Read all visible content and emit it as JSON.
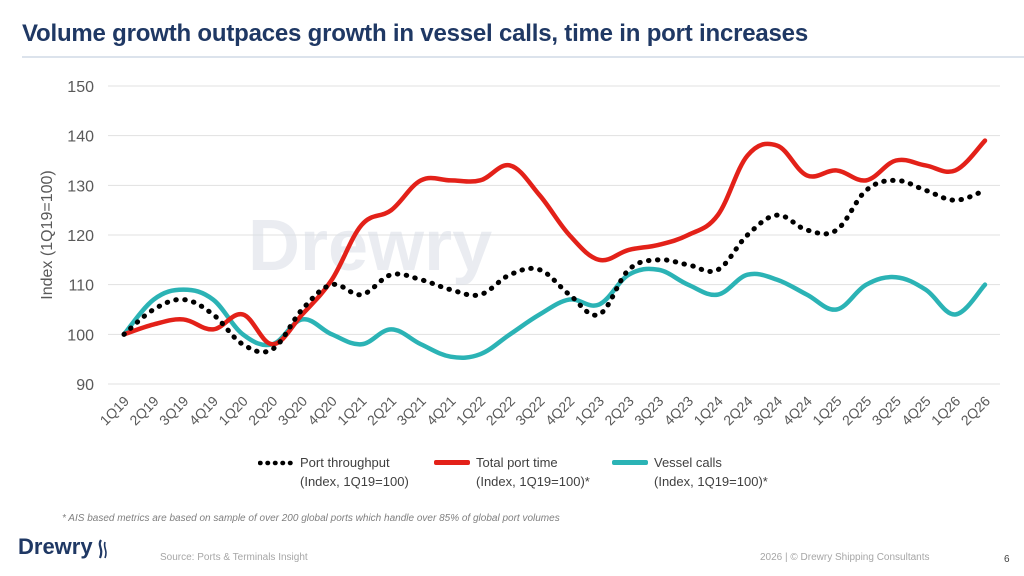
{
  "slide": {
    "title": "Volume growth outpaces growth in vessel calls, time in port increases",
    "watermark": "Drewry",
    "footnote": "* AIS based metrics are based on sample of over 200 global ports which handle over 85% of global port volumes",
    "logo_text": "Drewry",
    "source": "Source: Ports & Terminals Insight",
    "copyright": "2026  |  © Drewry Shipping Consultants",
    "page_number": "6"
  },
  "legend": {
    "items": [
      {
        "line1": "Port throughput",
        "line2": "(Index, 1Q19=100)",
        "color": "#000000",
        "style": "dotted"
      },
      {
        "line1": "Total port time",
        "line2": "(Index, 1Q19=100)*",
        "color": "#e32119",
        "style": "solid"
      },
      {
        "line1": "Vessel calls",
        "line2": "(Index, 1Q19=100)*",
        "color": "#2bb3b5",
        "style": "solid"
      }
    ]
  },
  "chart_data": {
    "type": "line",
    "title": "Volume growth outpaces growth in vessel calls, time in port increases",
    "xlabel": "",
    "ylabel": "Index (1Q19=100)",
    "ylim": [
      90,
      150
    ],
    "yticks": [
      90,
      100,
      110,
      120,
      130,
      140,
      150
    ],
    "grid": true,
    "legend_position": "bottom",
    "categories": [
      "1Q19",
      "2Q19",
      "3Q19",
      "4Q19",
      "1Q20",
      "2Q20",
      "3Q20",
      "4Q20",
      "1Q21",
      "2Q21",
      "3Q21",
      "4Q21",
      "1Q22",
      "2Q22",
      "3Q22",
      "4Q22",
      "1Q23",
      "2Q23",
      "3Q23",
      "4Q23",
      "1Q24",
      "2Q24",
      "3Q24",
      "4Q24",
      "1Q25",
      "2Q25",
      "3Q25",
      "4Q25",
      "1Q26",
      "2Q26"
    ],
    "series": [
      {
        "name": "Port throughput",
        "color": "#000000",
        "style": "dotted",
        "values": [
          100,
          105,
          107,
          104,
          98,
          97,
          105,
          110,
          108,
          112,
          111,
          109,
          108,
          112,
          113,
          108,
          104,
          113,
          115,
          114,
          113,
          120,
          124,
          121,
          121,
          129,
          131,
          129,
          127,
          129
        ]
      },
      {
        "name": "Total port time",
        "color": "#e32119",
        "style": "solid",
        "values": [
          100,
          102,
          103,
          101,
          104,
          98,
          104,
          111,
          122,
          125,
          131,
          131,
          131,
          134,
          128,
          120,
          115,
          117,
          118,
          120,
          124,
          136,
          138,
          132,
          133,
          131,
          135,
          134,
          133,
          139
        ]
      },
      {
        "name": "Vessel calls",
        "color": "#2bb3b5",
        "style": "solid",
        "values": [
          100,
          107,
          109,
          107,
          100,
          98,
          103,
          100,
          98,
          101,
          98,
          95.5,
          96,
          100,
          104,
          107,
          106,
          112,
          113,
          110,
          108,
          112,
          111,
          108,
          105,
          110,
          111.5,
          109,
          104,
          110
        ]
      }
    ]
  }
}
